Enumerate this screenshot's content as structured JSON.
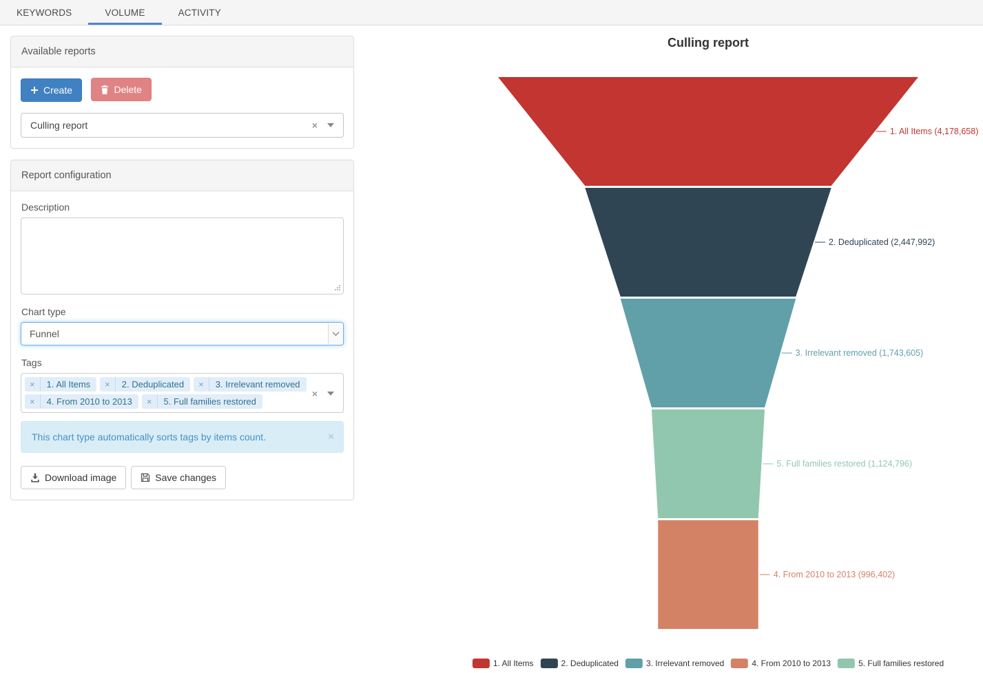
{
  "tabs": [
    {
      "label": "KEYWORDS",
      "active": false
    },
    {
      "label": "VOLUME",
      "active": true
    },
    {
      "label": "ACTIVITY",
      "active": false
    }
  ],
  "available_reports": {
    "title": "Available reports",
    "create_label": "Create",
    "delete_label": "Delete",
    "selected_report": "Culling report"
  },
  "report_config": {
    "title": "Report configuration",
    "description_label": "Description",
    "description_value": "",
    "chart_type_label": "Chart type",
    "chart_type_value": "Funnel",
    "tags_label": "Tags",
    "tags": [
      "1. All Items",
      "2. Deduplicated",
      "3. Irrelevant removed",
      "4. From 2010 to 2013",
      "5. Full families restored"
    ],
    "alert_text": "This chart type automatically sorts tags by items count.",
    "download_label": "Download image",
    "save_label": "Save changes"
  },
  "icons": {
    "remove": "×",
    "clear": "×",
    "close": "×"
  },
  "chart_data": {
    "type": "funnel",
    "title": "Culling report",
    "sort": "descending by items count",
    "label_format": "{name} ({value})",
    "series": [
      {
        "name": "1. All Items",
        "value": 4178658,
        "color": "#c23531"
      },
      {
        "name": "2. Deduplicated",
        "value": 2447992,
        "color": "#2f4554"
      },
      {
        "name": "3. Irrelevant removed",
        "value": 1743605,
        "color": "#61a0a8"
      },
      {
        "name": "5. Full families restored",
        "value": 1124796,
        "color": "#91c7ae"
      },
      {
        "name": "4. From 2010 to 2013",
        "value": 996402,
        "color": "#d48265"
      }
    ],
    "legend": [
      {
        "label": "1. All Items",
        "color": "#c23531"
      },
      {
        "label": "2. Deduplicated",
        "color": "#2f4554"
      },
      {
        "label": "3. Irrelevant removed",
        "color": "#61a0a8"
      },
      {
        "label": "4. From 2010 to 2013",
        "color": "#d48265"
      },
      {
        "label": "5. Full families restored",
        "color": "#91c7ae"
      }
    ],
    "legend_position": "bottom"
  }
}
